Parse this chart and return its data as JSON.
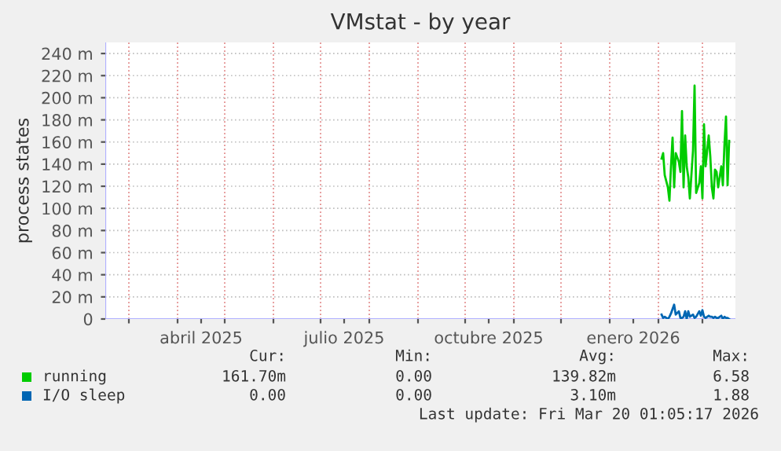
{
  "chart_data": {
    "type": "line",
    "title": "VMstat - by year",
    "ylabel": "process states",
    "xlim": [
      "2025-02-14",
      "2026-03-22"
    ],
    "xticks": [
      {
        "value": "2025-03-01",
        "label": null
      },
      {
        "value": "2025-04-01",
        "label": null
      },
      {
        "value": "2025-04-16",
        "label": "abril 2025"
      },
      {
        "value": "2025-05-01",
        "label": null
      },
      {
        "value": "2025-06-01",
        "label": null
      },
      {
        "value": "2025-07-01",
        "label": null
      },
      {
        "value": "2025-07-16",
        "label": "julio 2025"
      },
      {
        "value": "2025-08-01",
        "label": null
      },
      {
        "value": "2025-09-01",
        "label": null
      },
      {
        "value": "2025-10-01",
        "label": null
      },
      {
        "value": "2025-10-16",
        "label": "octubre 2025"
      },
      {
        "value": "2025-11-01",
        "label": null
      },
      {
        "value": "2025-12-01",
        "label": null
      },
      {
        "value": "2026-01-01",
        "label": null
      },
      {
        "value": "2026-01-16",
        "label": "enero 2026"
      },
      {
        "value": "2026-02-01",
        "label": null
      },
      {
        "value": "2026-03-01",
        "label": null
      }
    ],
    "ylim": [
      0,
      250
    ],
    "yticks": [
      0,
      {
        "value": 20,
        "label": "20 m"
      },
      {
        "value": 40,
        "label": "40 m"
      },
      {
        "value": 60,
        "label": "60 m"
      },
      {
        "value": 80,
        "label": "80 m"
      },
      {
        "value": 100,
        "label": "100 m"
      },
      {
        "value": 120,
        "label": "120 m"
      },
      {
        "value": 140,
        "label": "140 m"
      },
      {
        "value": 160,
        "label": "160 m"
      },
      {
        "value": 180,
        "label": "180 m"
      },
      {
        "value": 200,
        "label": "200 m"
      },
      {
        "value": 220,
        "label": "220 m"
      },
      {
        "value": 240,
        "label": "240 m"
      }
    ],
    "grid": true,
    "legend": "bottom",
    "x": [
      "2026-02-03",
      "2026-02-04",
      "2026-02-05",
      "2026-02-07",
      "2026-02-08",
      "2026-02-09",
      "2026-02-10",
      "2026-02-11",
      "2026-02-12",
      "2026-02-14",
      "2026-02-15",
      "2026-02-16",
      "2026-02-17",
      "2026-02-18",
      "2026-02-19",
      "2026-02-20",
      "2026-02-21",
      "2026-02-23",
      "2026-02-24",
      "2026-02-25",
      "2026-02-27",
      "2026-02-28",
      "2026-03-01",
      "2026-03-02",
      "2026-03-03",
      "2026-03-05",
      "2026-03-06",
      "2026-03-07",
      "2026-03-08",
      "2026-03-09",
      "2026-03-10",
      "2026-03-11",
      "2026-03-13",
      "2026-03-14",
      "2026-03-15",
      "2026-03-16",
      "2026-03-17",
      "2026-03-18"
    ],
    "series": [
      {
        "name": "running",
        "color": "#00cc00",
        "values": [
          145,
          150,
          130,
          119,
          107,
          138,
          164,
          119,
          150,
          142,
          133,
          188,
          119,
          166,
          138,
          128,
          109,
          152,
          211,
          114,
          123,
          138,
          109,
          176,
          138,
          166,
          147,
          119,
          109,
          135,
          133,
          119,
          138,
          121,
          157,
          183,
          121,
          161
        ]
      },
      {
        "name": "I/O sleep",
        "color": "#0066b3",
        "values": [
          4,
          1,
          2,
          0,
          2,
          5,
          9,
          13,
          4,
          7,
          1,
          1,
          2,
          7,
          0,
          7,
          2,
          4,
          1,
          2,
          7,
          3,
          8,
          2,
          1,
          3,
          2,
          2,
          1,
          2,
          1,
          1,
          3,
          0,
          2,
          1,
          1,
          0
        ]
      }
    ],
    "annotations": [
      "Cur:",
      "Min:",
      "Avg:",
      "Max:",
      "161.70m",
      "0.00",
      "139.82m",
      "6.58",
      "0.00",
      "0.00",
      "3.10m",
      "1.88",
      "Last update: Fri Mar 20 01:05:17 2026"
    ]
  }
}
